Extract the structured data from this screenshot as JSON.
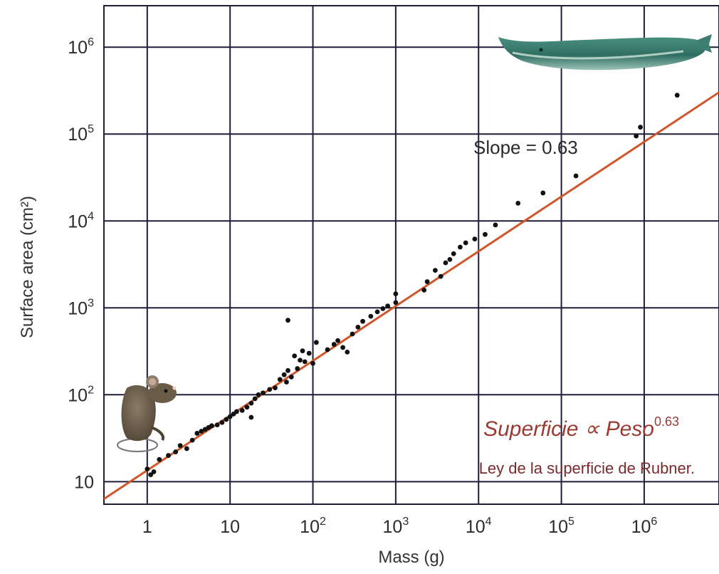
{
  "chart_data": {
    "type": "scatter",
    "xscale": "log",
    "yscale": "log",
    "xlabel": "Mass (g)",
    "ylabel": "Surface area (cm²)",
    "xlim": [
      0.3,
      8000000
    ],
    "ylim": [
      5.5,
      3000000
    ],
    "grid": true,
    "x_ticks": [
      {
        "value": 1,
        "base": "1",
        "exp": ""
      },
      {
        "value": 10,
        "base": "10",
        "exp": ""
      },
      {
        "value": 100,
        "base": "10",
        "exp": "2"
      },
      {
        "value": 1000,
        "base": "10",
        "exp": "3"
      },
      {
        "value": 10000,
        "base": "10",
        "exp": "4"
      },
      {
        "value": 100000,
        "base": "10",
        "exp": "5"
      },
      {
        "value": 1000000,
        "base": "10",
        "exp": "6"
      }
    ],
    "y_ticks": [
      {
        "value": 10,
        "base": "10",
        "exp": ""
      },
      {
        "value": 100,
        "base": "10",
        "exp": "2"
      },
      {
        "value": 1000,
        "base": "10",
        "exp": "3"
      },
      {
        "value": 10000,
        "base": "10",
        "exp": "4"
      },
      {
        "value": 100000,
        "base": "10",
        "exp": "5"
      },
      {
        "value": 1000000,
        "base": "10",
        "exp": "6"
      }
    ],
    "fit_line": {
      "slope": 0.63,
      "intercept_at_x1": 13.5,
      "color": "#d0562b"
    },
    "point_color": "#111111",
    "points": [
      [
        1.0,
        14
      ],
      [
        1.1,
        12
      ],
      [
        1.2,
        13
      ],
      [
        1.4,
        18
      ],
      [
        1.8,
        20
      ],
      [
        2.2,
        22
      ],
      [
        2.5,
        26
      ],
      [
        3.0,
        24
      ],
      [
        3.5,
        30
      ],
      [
        4.0,
        36
      ],
      [
        4.5,
        38
      ],
      [
        5.0,
        40
      ],
      [
        5.5,
        42
      ],
      [
        6.0,
        44
      ],
      [
        7.0,
        45
      ],
      [
        8.0,
        48
      ],
      [
        9.0,
        52
      ],
      [
        10,
        56
      ],
      [
        11,
        60
      ],
      [
        12,
        64
      ],
      [
        14,
        66
      ],
      [
        16,
        72
      ],
      [
        18,
        55
      ],
      [
        18,
        80
      ],
      [
        20,
        90
      ],
      [
        22,
        100
      ],
      [
        25,
        105
      ],
      [
        30,
        115
      ],
      [
        35,
        120
      ],
      [
        40,
        150
      ],
      [
        45,
        170
      ],
      [
        48,
        140
      ],
      [
        50,
        190
      ],
      [
        55,
        160
      ],
      [
        60,
        280
      ],
      [
        65,
        200
      ],
      [
        70,
        250
      ],
      [
        75,
        320
      ],
      [
        80,
        240
      ],
      [
        50,
        720
      ],
      [
        90,
        300
      ],
      [
        100,
        230
      ],
      [
        110,
        400
      ],
      [
        150,
        330
      ],
      [
        180,
        380
      ],
      [
        200,
        420
      ],
      [
        230,
        350
      ],
      [
        260,
        310
      ],
      [
        300,
        500
      ],
      [
        350,
        600
      ],
      [
        400,
        700
      ],
      [
        500,
        800
      ],
      [
        600,
        900
      ],
      [
        700,
        980
      ],
      [
        800,
        1050
      ],
      [
        1000,
        1150
      ],
      [
        1000,
        1450
      ],
      [
        2200,
        1600
      ],
      [
        2400,
        2000
      ],
      [
        3000,
        2700
      ],
      [
        3500,
        2300
      ],
      [
        4000,
        3300
      ],
      [
        4500,
        3600
      ],
      [
        5000,
        4200
      ],
      [
        6000,
        5000
      ],
      [
        7000,
        5600
      ],
      [
        9000,
        6200
      ],
      [
        12000,
        7000
      ],
      [
        16000,
        9000
      ],
      [
        30000,
        16000
      ],
      [
        60000,
        21000
      ],
      [
        150000,
        33000
      ],
      [
        800000,
        95000
      ],
      [
        900000,
        120000
      ],
      [
        2500000,
        280000
      ]
    ],
    "annotations": {
      "slope": "Slope = 0.63",
      "formula_base": "Superficie ∝ Peso",
      "formula_exp": "0.63",
      "subtitle": "Ley de la superficie de Rubner."
    }
  }
}
